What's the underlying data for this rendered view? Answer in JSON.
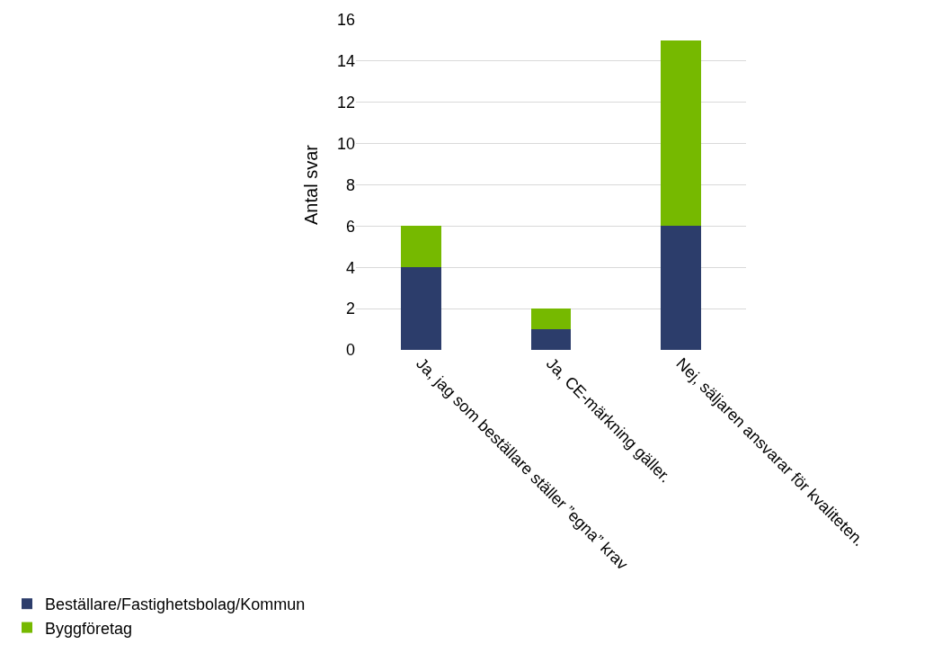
{
  "chart_data": {
    "type": "bar",
    "stacked": true,
    "ylabel": "Antal svar",
    "categories": [
      "Ja, jag som beställare ställer ”egna” krav",
      "Ja, CE-märkning gäller.",
      "Nej, säljaren ansvarar för kvaliteten."
    ],
    "series": [
      {
        "name": "Beställare/Fastighetsbolag/Kommun",
        "color": "#2c3d6b",
        "values": [
          4,
          1,
          6
        ]
      },
      {
        "name": "Byggföretag",
        "color": "#76b900",
        "values": [
          2,
          1,
          9
        ]
      }
    ],
    "ylim": [
      0,
      16
    ],
    "yticks": [
      0,
      2,
      4,
      6,
      8,
      10,
      12,
      14,
      16
    ],
    "grid": "y",
    "legend": "bottom left"
  }
}
